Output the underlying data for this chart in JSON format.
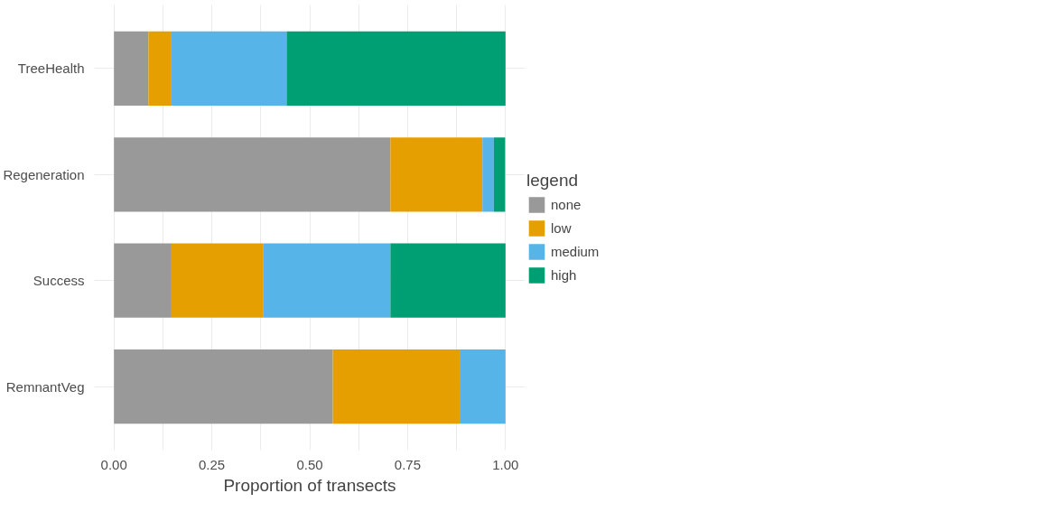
{
  "chart_data": {
    "type": "bar",
    "orientation": "horizontal",
    "stacked": true,
    "categories": [
      "TreeHealth",
      "Regeneration",
      "Success",
      "RemnantVeg"
    ],
    "series": [
      {
        "name": "none",
        "color": "#999999",
        "values": [
          0.088,
          0.706,
          0.147,
          0.559
        ]
      },
      {
        "name": "low",
        "color": "#e69f00",
        "values": [
          0.059,
          0.235,
          0.235,
          0.324
        ]
      },
      {
        "name": "medium",
        "color": "#56b4e9",
        "values": [
          0.294,
          0.029,
          0.324,
          0.117
        ]
      },
      {
        "name": "high",
        "color": "#009e73",
        "values": [
          0.559,
          0.029,
          0.294,
          0
        ]
      }
    ],
    "xlabel": "Proportion of transects",
    "legend_title": "legend",
    "legend": "right",
    "xlim": [
      -0.05,
      1.05
    ],
    "xticks": [
      {
        "value": 0,
        "label": "0.00"
      },
      {
        "value": 0.125,
        "label": null
      },
      0.25,
      {
        "value": 0.375,
        "label": null
      },
      {
        "value": 0.5,
        "label": "0.50"
      },
      {
        "value": 0.625,
        "label": null
      },
      0.75,
      {
        "value": 0.875,
        "label": null
      },
      {
        "value": 1,
        "label": "1.00"
      }
    ],
    "grid": true
  }
}
